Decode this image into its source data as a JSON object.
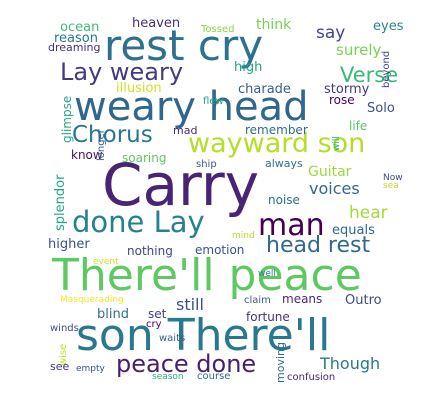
{
  "words": [
    {
      "text": "Carry",
      "color": "#482475"
    },
    {
      "text": "There'll peace",
      "color": "#5ec962"
    },
    {
      "text": "son There'll",
      "color": "#2a788e"
    },
    {
      "text": "rest cry",
      "color": "#2c728e"
    },
    {
      "text": "weary head",
      "color": "#30678d"
    },
    {
      "text": "Lay weary",
      "color": "#443983"
    },
    {
      "text": "wayward son",
      "color": "#b5de2b"
    },
    {
      "text": "done Lay",
      "color": "#26828e"
    },
    {
      "text": "man",
      "color": "#440154"
    },
    {
      "text": "head rest",
      "color": "#31688e"
    },
    {
      "text": "peace done",
      "color": "#481f70"
    },
    {
      "text": "Chorus",
      "color": "#2a768e"
    },
    {
      "text": "Verse",
      "color": "#38b977"
    },
    {
      "text": "surely",
      "color": "#7ad151"
    },
    {
      "text": "say",
      "color": "#414487"
    },
    {
      "text": "eyes",
      "color": "#27808e"
    },
    {
      "text": "ocean",
      "color": "#3fbc73"
    },
    {
      "text": "heaven",
      "color": "#472d7b"
    },
    {
      "text": "Tossed",
      "color": "#8fd744"
    },
    {
      "text": "think",
      "color": "#75d054"
    },
    {
      "text": "reason",
      "color": "#2a788e"
    },
    {
      "text": "dreaming",
      "color": "#472f7d"
    },
    {
      "text": "high",
      "color": "#21a685"
    },
    {
      "text": "beyond",
      "color": "#3f4889"
    },
    {
      "text": "illusion",
      "color": "#d2e21b"
    },
    {
      "text": "charade",
      "color": "#355f8d"
    },
    {
      "text": "stormy",
      "color": "#443a83"
    },
    {
      "text": "rose",
      "color": "#46085c"
    },
    {
      "text": "flew",
      "color": "#22a884"
    },
    {
      "text": "Solo",
      "color": "#3b518b"
    },
    {
      "text": "life",
      "color": "#58c765"
    },
    {
      "text": "glimpse",
      "color": "#22a884"
    },
    {
      "text": "mad",
      "color": "#482979"
    },
    {
      "text": "remember",
      "color": "#2f6c8e"
    },
    {
      "text": "will",
      "color": "#28ae80"
    },
    {
      "text": "know",
      "color": "#471164"
    },
    {
      "text": "soaring",
      "color": "#5ec962"
    },
    {
      "text": "ship",
      "color": "#3a548c"
    },
    {
      "text": "always",
      "color": "#2c738e"
    },
    {
      "text": "Guitar",
      "color": "#9dd93b"
    },
    {
      "text": "longer",
      "color": "#375b8d"
    },
    {
      "text": "voices",
      "color": "#31688e"
    },
    {
      "text": "Now",
      "color": "#3d4e8a"
    },
    {
      "text": "sea",
      "color": "#bddf26"
    },
    {
      "text": "splendor",
      "color": "#22a884"
    },
    {
      "text": "noise",
      "color": "#2d708e"
    },
    {
      "text": "hear",
      "color": "#a2da37"
    },
    {
      "text": "mind",
      "color": "#b8de29"
    },
    {
      "text": "equals",
      "color": "#31688e"
    },
    {
      "text": "higher",
      "color": "#3c4f8a"
    },
    {
      "text": "nothing",
      "color": "#414487"
    },
    {
      "text": "emotion",
      "color": "#3b528b"
    },
    {
      "text": "event",
      "color": "#d8e219"
    },
    {
      "text": "well",
      "color": "#25848e"
    },
    {
      "text": "Masquerading",
      "color": "#f6e620"
    },
    {
      "text": "still",
      "color": "#3b518b"
    },
    {
      "text": "claim",
      "color": "#355e8d"
    },
    {
      "text": "means",
      "color": "#472a7a"
    },
    {
      "text": "Outro",
      "color": "#3e4a89"
    },
    {
      "text": "blind",
      "color": "#2d708e"
    },
    {
      "text": "set",
      "color": "#424186"
    },
    {
      "text": "fortune",
      "color": "#46327e"
    },
    {
      "text": "winds",
      "color": "#3d4e8a"
    },
    {
      "text": "cry",
      "color": "#440154"
    },
    {
      "text": "wise",
      "color": "#c0df25"
    },
    {
      "text": "waits",
      "color": "#34618d"
    },
    {
      "text": "Though",
      "color": "#2a788e"
    },
    {
      "text": "see",
      "color": "#45337d"
    },
    {
      "text": "empty",
      "color": "#3a538b"
    },
    {
      "text": "moving",
      "color": "#2e6e8e"
    },
    {
      "text": "season",
      "color": "#29af7f"
    },
    {
      "text": "course",
      "color": "#31688e"
    },
    {
      "text": "confusion",
      "color": "#482576"
    }
  ]
}
